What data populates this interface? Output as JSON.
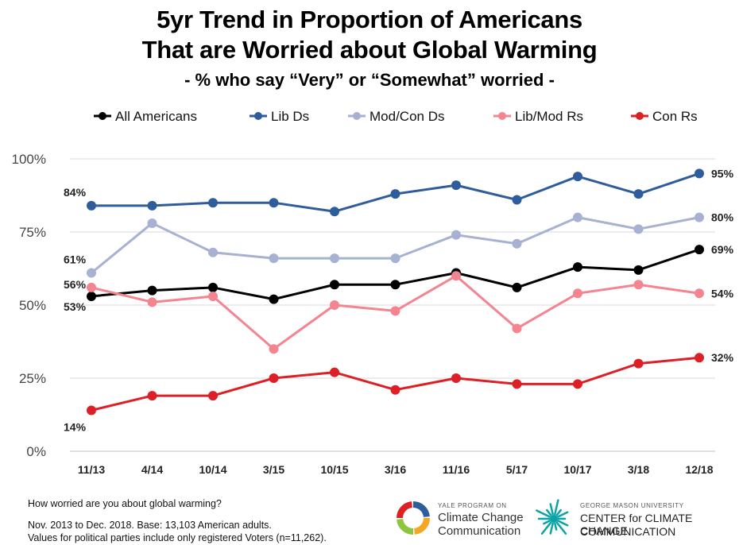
{
  "chart_data": {
    "type": "line",
    "title": "5yr Trend in Proportion of Americans That are Worried about Global Warming",
    "title_lines": [
      "5yr Trend in Proportion of Americans",
      "That are Worried about Global Warming"
    ],
    "subtitle": "- % who say “Very” or “Somewhat” worried -",
    "categories": [
      "11/13",
      "4/14",
      "10/14",
      "3/15",
      "10/15",
      "3/16",
      "11/16",
      "5/17",
      "10/17",
      "3/18",
      "12/18"
    ],
    "ylim": [
      0,
      100
    ],
    "yticks": [
      0,
      25,
      50,
      75,
      100
    ],
    "ytick_labels": [
      "0%",
      "25%",
      "50%",
      "75%",
      "100%"
    ],
    "grid": true,
    "legend_position": "top",
    "series": [
      {
        "name": "All Americans",
        "color": "#000000",
        "values": [
          53,
          55,
          56,
          52,
          57,
          57,
          61,
          56,
          63,
          62,
          69
        ],
        "first_label": "53%",
        "last_label": "69%"
      },
      {
        "name": "Lib Ds",
        "color": "#2f5d9b",
        "values": [
          84,
          84,
          85,
          85,
          82,
          88,
          91,
          86,
          94,
          88,
          95
        ],
        "first_label": "84%",
        "last_label": "95%"
      },
      {
        "name": "Mod/Con Ds",
        "color": "#a7b1d1",
        "values": [
          61,
          78,
          68,
          66,
          66,
          66,
          74,
          71,
          80,
          76,
          80
        ],
        "first_label": "61%",
        "last_label": "80%"
      },
      {
        "name": "Lib/Mod Rs",
        "color": "#f4848f",
        "values": [
          56,
          51,
          53,
          35,
          50,
          48,
          60,
          42,
          54,
          57,
          54
        ],
        "first_label": "56%",
        "last_label": "54%"
      },
      {
        "name": "Con Rs",
        "color": "#dd1f26",
        "values": [
          14,
          19,
          19,
          25,
          27,
          21,
          25,
          23,
          23,
          30,
          32
        ],
        "first_label": "14%",
        "last_label": "32%"
      }
    ]
  },
  "footer": {
    "question": "How worried are you about global warming?",
    "note1": "Nov. 2013 to Dec. 2018. Base: 13,103 American adults.",
    "note2": "Values for political parties include only registered Voters (n=11,262)."
  },
  "logos": {
    "yale_small": "YALE PROGRAM ON",
    "yale_line1": "Climate Change",
    "yale_line2": "Communication",
    "gmu_small": "GEORGE MASON UNIVERSITY",
    "gmu_line1": "CENTER for CLIMATE CHANGE",
    "gmu_line2": "COMMUNICATION",
    "yale_colors": [
      "#2f5d9b",
      "#f5a623",
      "#8cc63f",
      "#dd1f26"
    ],
    "gmu_color": "#0aa3a8"
  }
}
